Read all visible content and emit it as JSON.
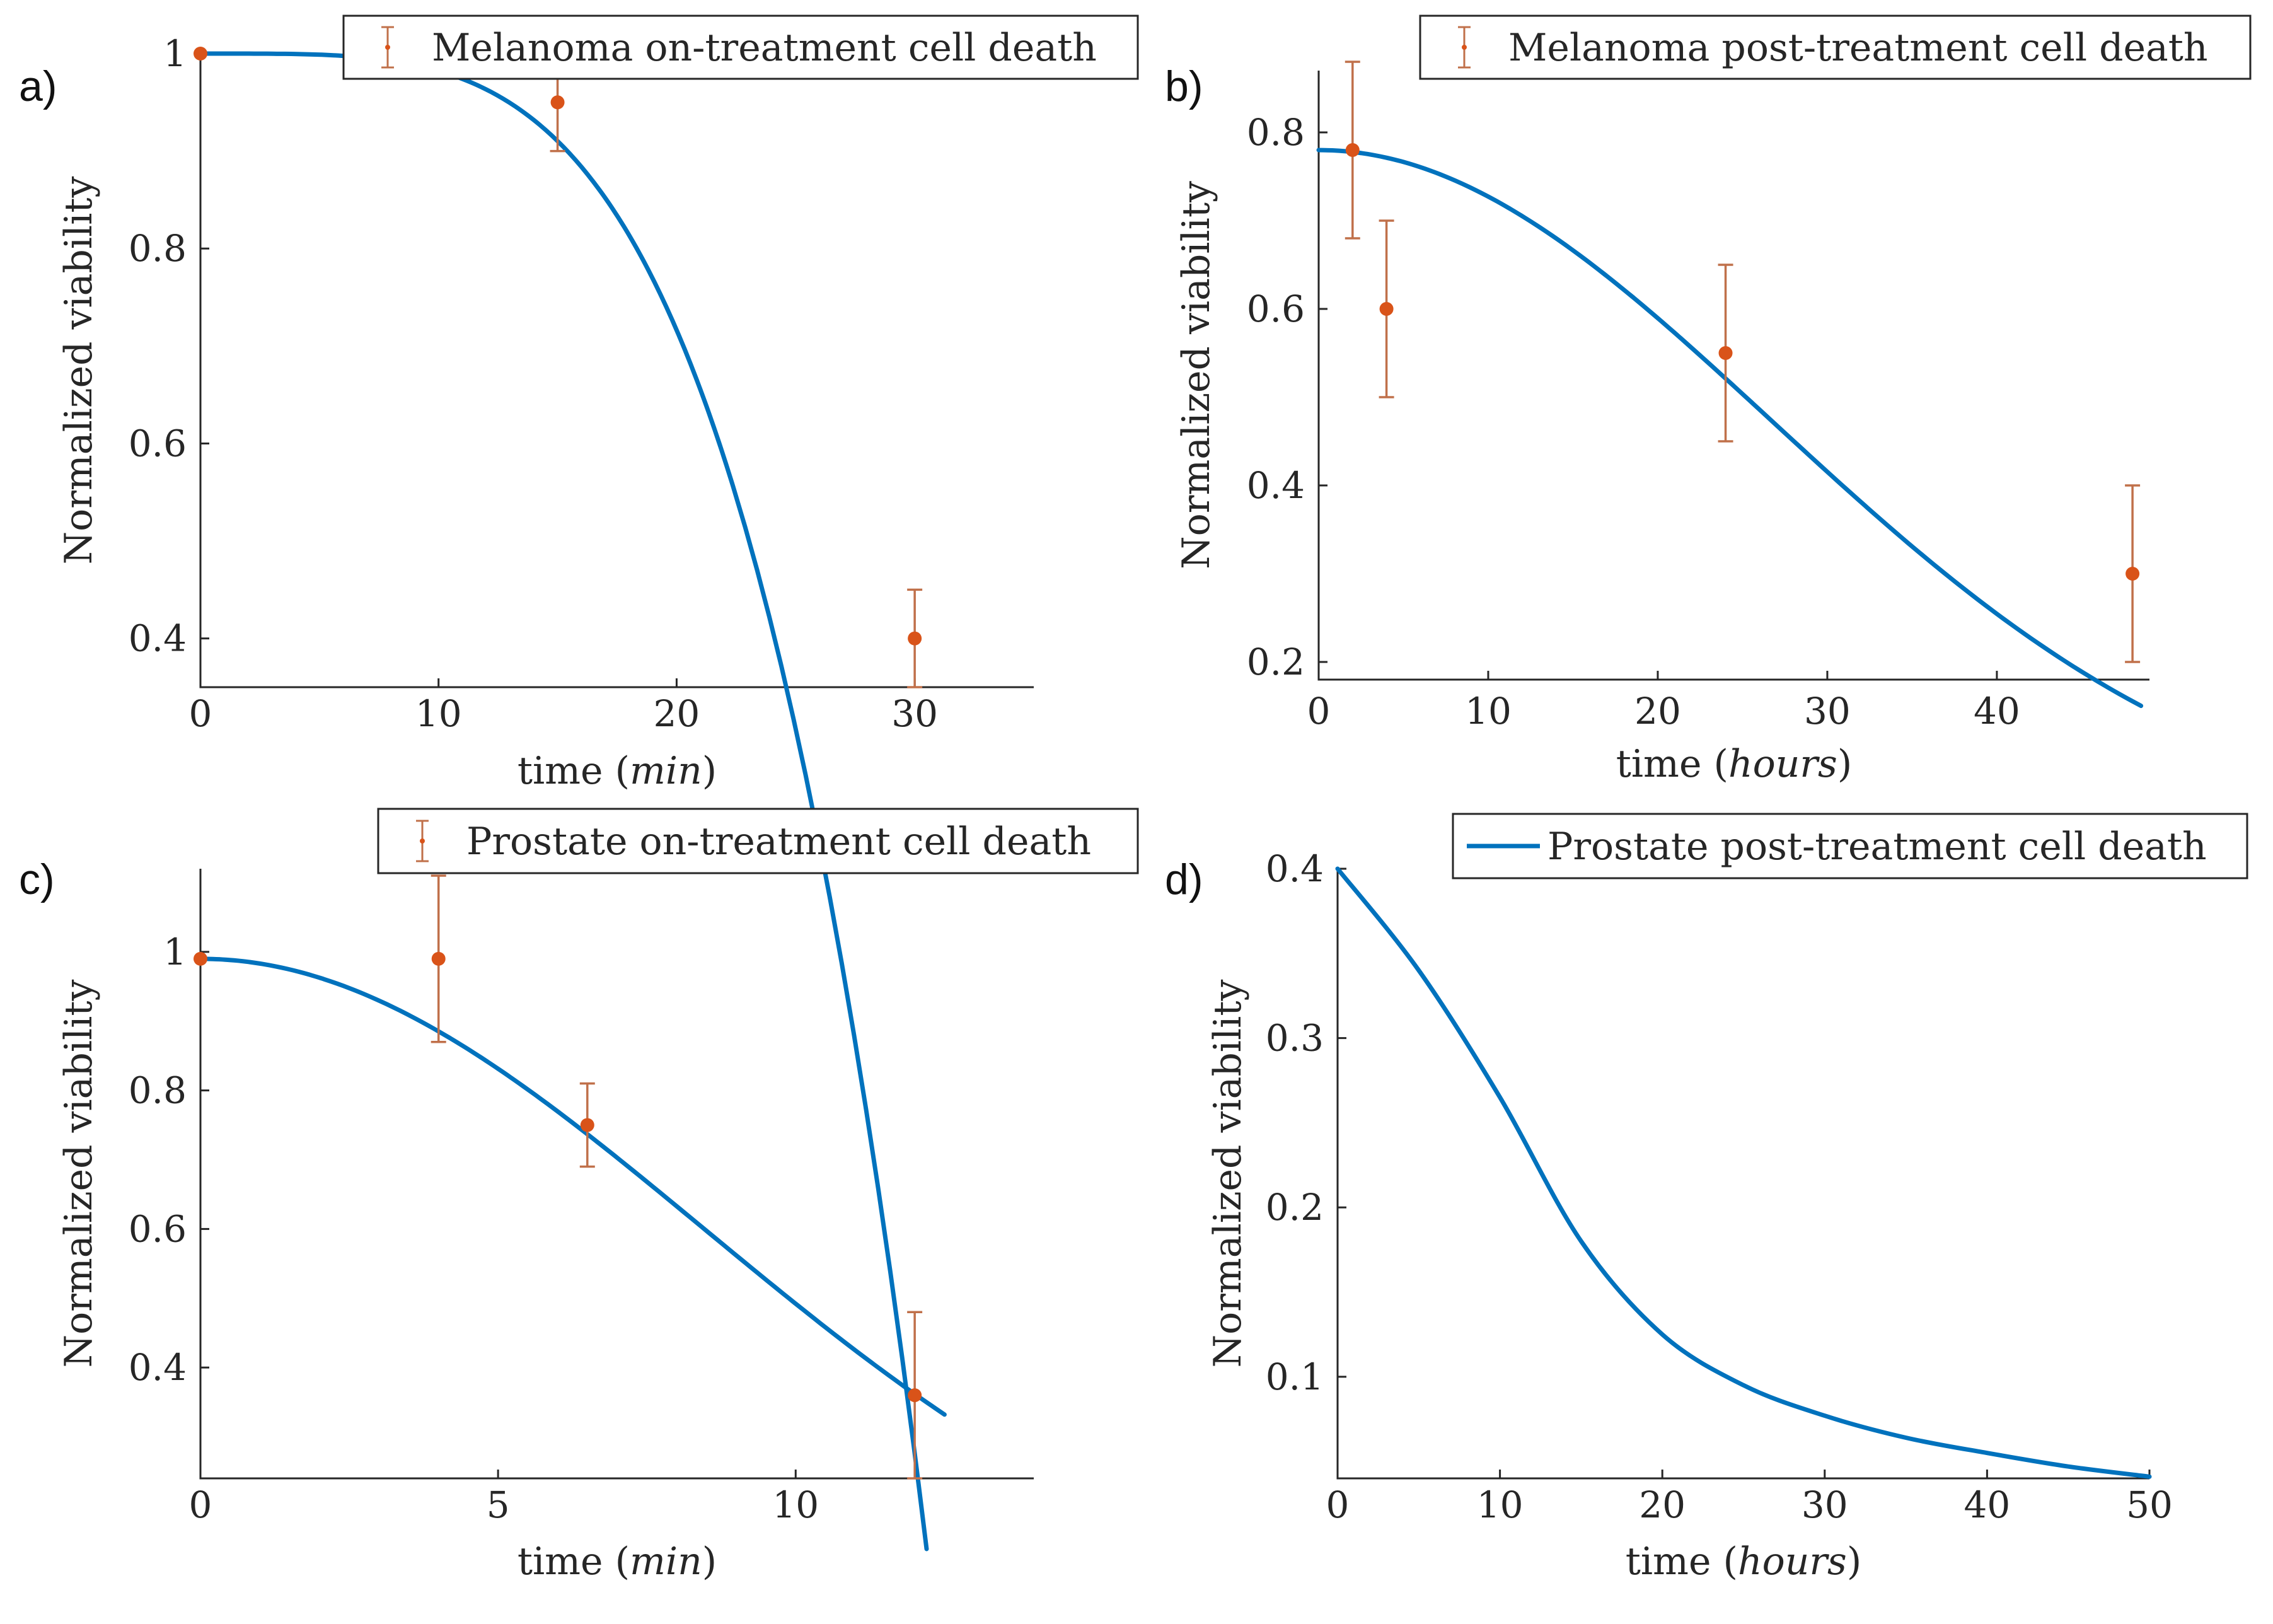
{
  "figure": {
    "colors": {
      "model_line": "#0072BD",
      "data_point": "#D95319",
      "error_bar": "#C0704A",
      "axis": "#262626"
    }
  },
  "chart_data": [
    {
      "panel": "a)",
      "type": "line",
      "legend": {
        "label": "Melanoma on-treatment cell death",
        "marker": "errorbar",
        "placement": "top-right"
      },
      "xlabel_pre": "time",
      "xlabel_unit": "min",
      "ylabel": "Normalized viability",
      "xlim": [
        0,
        35
      ],
      "ylim": [
        0.35,
        1.0
      ],
      "xticks": [
        0,
        10,
        20,
        30
      ],
      "xtick_labels": [
        "0",
        "10",
        "20",
        "30"
      ],
      "yticks": [
        0.4,
        0.6,
        0.8,
        1.0
      ],
      "ytick_labels": [
        "0.4",
        "0.6",
        "0.8",
        "1"
      ],
      "grid": false,
      "model_curve": {
        "kind": "power",
        "x0": 0,
        "x1": 30.5,
        "y0": 1.0,
        "a": 0.001108,
        "p": 4.0
      },
      "points": [
        {
          "x": 0,
          "y": 1.0,
          "err_low": 0,
          "err_high": 0
        },
        {
          "x": 15,
          "y": 0.95,
          "err_low": 0.05,
          "err_high": 0.05
        },
        {
          "x": 30,
          "y": 0.4,
          "err_low": 0.05,
          "err_high": 0.05
        }
      ]
    },
    {
      "panel": "b)",
      "type": "line",
      "legend": {
        "label": "Melanoma post-treatment cell death",
        "marker": "errorbar",
        "placement": "top-right"
      },
      "xlabel_pre": "time",
      "xlabel_unit": "hours",
      "ylabel": "Normalized viability",
      "xlim": [
        0,
        49
      ],
      "ylim": [
        0.18,
        0.87
      ],
      "xticks": [
        0,
        10,
        20,
        30,
        40
      ],
      "xtick_labels": [
        "0",
        "10",
        "20",
        "30",
        "40"
      ],
      "yticks": [
        0.2,
        0.4,
        0.6,
        0.8
      ],
      "ytick_labels": [
        "0.2",
        "0.4",
        "0.6",
        "0.8"
      ],
      "grid": false,
      "model_curve": {
        "kind": "gauss",
        "x0": 0,
        "x1": 48.5,
        "y0": 0.78,
        "b": 0.0007
      },
      "points": [
        {
          "x": 2,
          "y": 0.78,
          "err_low": 0.1,
          "err_high": 0.1
        },
        {
          "x": 4,
          "y": 0.6,
          "err_low": 0.1,
          "err_high": 0.1
        },
        {
          "x": 24,
          "y": 0.55,
          "err_low": 0.1,
          "err_high": 0.1
        },
        {
          "x": 48,
          "y": 0.3,
          "err_low": 0.1,
          "err_high": 0.1
        }
      ]
    },
    {
      "panel": "c)",
      "type": "line",
      "legend": {
        "label": "Prostate on-treatment cell death",
        "marker": "errorbar",
        "placement": "top-right"
      },
      "xlabel_pre": "time",
      "xlabel_unit": "min",
      "ylabel": "Normalized viability",
      "xlim": [
        0,
        14
      ],
      "ylim": [
        0.24,
        1.12
      ],
      "xticks": [
        0,
        5,
        10
      ],
      "xtick_labels": [
        "0",
        "5",
        "10"
      ],
      "yticks": [
        0.4,
        0.6,
        0.8,
        1.0
      ],
      "ytick_labels": [
        "0.4",
        "0.6",
        "0.8",
        "1"
      ],
      "grid": false,
      "model_curve": {
        "kind": "gauss",
        "x0": 0,
        "x1": 12.5,
        "y0": 0.99,
        "b": 0.00699
      },
      "points": [
        {
          "x": 0,
          "y": 0.99,
          "err_low": 0,
          "err_high": 0
        },
        {
          "x": 4,
          "y": 0.99,
          "err_low": 0.12,
          "err_high": 0.12
        },
        {
          "x": 6.5,
          "y": 0.75,
          "err_low": 0.06,
          "err_high": 0.06
        },
        {
          "x": 12,
          "y": 0.36,
          "err_low": 0.12,
          "err_high": 0.12
        }
      ]
    },
    {
      "panel": "d)",
      "type": "line",
      "legend": {
        "label": "Prostate post-treatment cell death",
        "marker": "line",
        "placement": "top-right"
      },
      "xlabel_pre": "time",
      "xlabel_unit": "hours",
      "ylabel": "Normalized viability",
      "xlim": [
        0,
        50
      ],
      "ylim": [
        0.04,
        0.4
      ],
      "xticks": [
        0,
        10,
        20,
        30,
        40,
        50
      ],
      "xtick_labels": [
        "0",
        "10",
        "20",
        "30",
        "40",
        "50"
      ],
      "yticks": [
        0.1,
        0.2,
        0.3,
        0.4
      ],
      "ytick_labels": [
        "0.1",
        "0.2",
        "0.3",
        "0.4"
      ],
      "grid": false,
      "model_curve": {
        "kind": "table",
        "x": [
          0,
          5,
          10,
          15,
          20,
          25,
          30,
          35,
          40,
          45,
          50
        ],
        "y": [
          0.4,
          0.34,
          0.265,
          0.18,
          0.125,
          0.095,
          0.077,
          0.064,
          0.055,
          0.047,
          0.041
        ]
      },
      "points": []
    }
  ]
}
